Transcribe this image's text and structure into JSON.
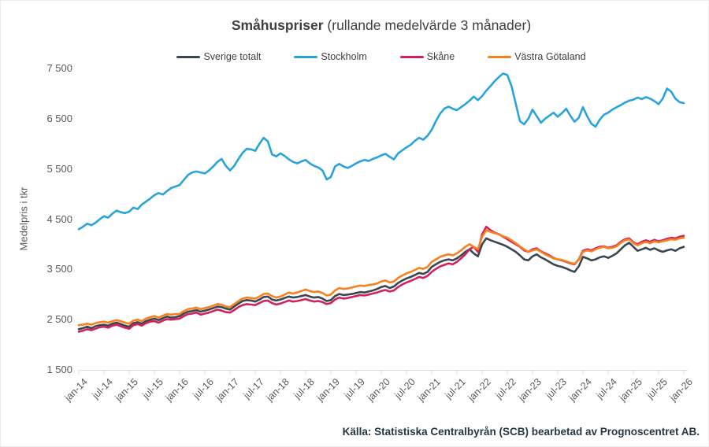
{
  "title": {
    "bold": "Småhuspriser",
    "rest": " (rullande medelvärde 3 månader)"
  },
  "source": "Källa: Statistiska Centralbyrån (SCB) bearbetad av Prognoscentret AB.",
  "y_axis": {
    "label": "Medelpris i tkr",
    "tick_labels": [
      "1 500",
      "2 500",
      "3 500",
      "4 500",
      "5 500",
      "6 500",
      "7 500"
    ],
    "tick_values": [
      1500,
      2500,
      3500,
      4500,
      5500,
      6500,
      7500
    ]
  },
  "x_axis": {
    "tick_labels": [
      "jan-14",
      "jul-14",
      "jan-15",
      "jul-15",
      "jan-16",
      "jul-16",
      "jan-17",
      "jul-17",
      "jan-18",
      "jul-18",
      "jan-19",
      "jul-19",
      "jan-20",
      "jul-20",
      "jan-21",
      "jul-21",
      "jan-22",
      "jul-22",
      "jan-23",
      "jul-23",
      "jan-24",
      "jul-24",
      "jan-25",
      "jul-25",
      "jan-26"
    ]
  },
  "chart_data": {
    "type": "line",
    "title": "Småhuspriser (rullande medelvärde 3 månader)",
    "ylabel": "Medelpris i tkr",
    "ylim": [
      1500,
      7500
    ],
    "x_start": "jan-14",
    "x_end": "jan-26",
    "x_step_months": 1,
    "legend_position": "top",
    "grid": false,
    "series": [
      {
        "name": "Sverige totalt",
        "color": "#3b4750",
        "values": [
          2310,
          2330,
          2360,
          2330,
          2370,
          2390,
          2400,
          2380,
          2420,
          2440,
          2410,
          2380,
          2360,
          2430,
          2450,
          2420,
          2470,
          2500,
          2520,
          2490,
          2530,
          2560,
          2540,
          2550,
          2570,
          2620,
          2660,
          2670,
          2690,
          2660,
          2680,
          2700,
          2730,
          2760,
          2750,
          2720,
          2700,
          2760,
          2820,
          2870,
          2890,
          2880,
          2860,
          2900,
          2950,
          2960,
          2900,
          2880,
          2900,
          2930,
          2960,
          2940,
          2950,
          2970,
          2990,
          2960,
          2940,
          2950,
          2920,
          2870,
          2890,
          2970,
          3010,
          2990,
          3000,
          3010,
          3030,
          3050,
          3040,
          3060,
          3080,
          3110,
          3150,
          3170,
          3130,
          3160,
          3230,
          3280,
          3320,
          3350,
          3390,
          3430,
          3410,
          3450,
          3550,
          3600,
          3650,
          3680,
          3700,
          3680,
          3720,
          3780,
          3850,
          3900,
          3820,
          3760,
          4000,
          4120,
          4080,
          4050,
          4020,
          3990,
          3950,
          3900,
          3850,
          3780,
          3700,
          3680,
          3760,
          3800,
          3740,
          3700,
          3650,
          3600,
          3570,
          3550,
          3520,
          3480,
          3450,
          3560,
          3750,
          3720,
          3680,
          3700,
          3740,
          3760,
          3730,
          3770,
          3820,
          3900,
          3980,
          4030,
          3950,
          3870,
          3900,
          3930,
          3890,
          3920,
          3880,
          3850,
          3880,
          3900,
          3870,
          3920,
          3950
        ]
      },
      {
        "name": "Stockholm",
        "color": "#29a3dc",
        "values": [
          4300,
          4350,
          4410,
          4380,
          4430,
          4500,
          4560,
          4530,
          4610,
          4670,
          4640,
          4620,
          4650,
          4730,
          4700,
          4790,
          4850,
          4910,
          4980,
          5020,
          4990,
          5060,
          5120,
          5150,
          5180,
          5280,
          5380,
          5430,
          5450,
          5430,
          5410,
          5470,
          5550,
          5640,
          5700,
          5560,
          5470,
          5560,
          5700,
          5820,
          5900,
          5890,
          5860,
          6000,
          6120,
          6050,
          5790,
          5750,
          5810,
          5760,
          5690,
          5640,
          5610,
          5650,
          5680,
          5610,
          5560,
          5530,
          5470,
          5290,
          5340,
          5550,
          5600,
          5550,
          5520,
          5560,
          5610,
          5650,
          5680,
          5660,
          5700,
          5730,
          5770,
          5800,
          5740,
          5690,
          5810,
          5870,
          5930,
          5980,
          6060,
          6120,
          6080,
          6160,
          6280,
          6450,
          6600,
          6700,
          6740,
          6700,
          6670,
          6730,
          6790,
          6860,
          6940,
          6870,
          6950,
          7060,
          7150,
          7250,
          7330,
          7400,
          7370,
          7150,
          6800,
          6450,
          6390,
          6500,
          6680,
          6550,
          6420,
          6500,
          6560,
          6620,
          6540,
          6610,
          6700,
          6560,
          6440,
          6520,
          6730,
          6550,
          6400,
          6340,
          6480,
          6580,
          6620,
          6680,
          6730,
          6770,
          6820,
          6860,
          6880,
          6920,
          6890,
          6930,
          6900,
          6850,
          6790,
          6900,
          7100,
          7040,
          6900,
          6830,
          6810
        ]
      },
      {
        "name": "Skåne",
        "color": "#d2215f",
        "values": [
          2260,
          2280,
          2310,
          2290,
          2320,
          2350,
          2360,
          2340,
          2380,
          2400,
          2370,
          2340,
          2320,
          2390,
          2410,
          2380,
          2430,
          2460,
          2470,
          2440,
          2480,
          2510,
          2500,
          2510,
          2520,
          2570,
          2610,
          2620,
          2640,
          2600,
          2620,
          2640,
          2670,
          2700,
          2680,
          2650,
          2640,
          2690,
          2750,
          2790,
          2810,
          2800,
          2790,
          2830,
          2870,
          2880,
          2830,
          2800,
          2820,
          2850,
          2880,
          2860,
          2870,
          2890,
          2910,
          2880,
          2860,
          2870,
          2850,
          2810,
          2830,
          2900,
          2940,
          2920,
          2930,
          2950,
          2970,
          2990,
          2980,
          3000,
          3020,
          3040,
          3070,
          3090,
          3060,
          3080,
          3150,
          3200,
          3240,
          3270,
          3310,
          3350,
          3330,
          3370,
          3450,
          3510,
          3560,
          3590,
          3620,
          3600,
          3650,
          3720,
          3800,
          3900,
          3950,
          3850,
          4200,
          4350,
          4280,
          4230,
          4200,
          4150,
          4100,
          4050,
          4000,
          3950,
          3880,
          3850,
          3900,
          3920,
          3860,
          3820,
          3780,
          3730,
          3700,
          3680,
          3650,
          3620,
          3600,
          3700,
          3870,
          3900,
          3880,
          3920,
          3950,
          3960,
          3930,
          3950,
          3980,
          4050,
          4100,
          4120,
          4040,
          4000,
          4050,
          4080,
          4050,
          4090,
          4060,
          4080,
          4110,
          4130,
          4120,
          4150,
          4170
        ]
      },
      {
        "name": "Västra Götaland",
        "color": "#f5821f",
        "values": [
          2390,
          2400,
          2420,
          2400,
          2430,
          2450,
          2460,
          2440,
          2470,
          2490,
          2470,
          2440,
          2420,
          2480,
          2500,
          2470,
          2520,
          2550,
          2570,
          2540,
          2580,
          2610,
          2600,
          2610,
          2610,
          2670,
          2710,
          2720,
          2740,
          2710,
          2730,
          2750,
          2780,
          2810,
          2800,
          2760,
          2750,
          2810,
          2870,
          2920,
          2940,
          2930,
          2920,
          2960,
          3010,
          3020,
          2970,
          2940,
          2960,
          3000,
          3040,
          3020,
          3040,
          3070,
          3100,
          3070,
          3050,
          3060,
          3030,
          2980,
          3000,
          3080,
          3130,
          3110,
          3120,
          3140,
          3160,
          3180,
          3170,
          3190,
          3200,
          3220,
          3260,
          3280,
          3240,
          3260,
          3330,
          3380,
          3420,
          3450,
          3490,
          3530,
          3510,
          3550,
          3650,
          3700,
          3750,
          3780,
          3800,
          3780,
          3820,
          3880,
          3950,
          4000,
          3950,
          3900,
          4150,
          4280,
          4250,
          4220,
          4200,
          4160,
          4130,
          4080,
          4020,
          3960,
          3900,
          3850,
          3880,
          3900,
          3850,
          3800,
          3760,
          3720,
          3700,
          3690,
          3660,
          3630,
          3610,
          3690,
          3850,
          3880,
          3860,
          3900,
          3930,
          3950,
          3920,
          3930,
          3960,
          4030,
          4080,
          4100,
          4020,
          3980,
          4020,
          4050,
          4020,
          4060,
          4040,
          4060,
          4080,
          4100,
          4090,
          4120,
          4130
        ]
      }
    ],
    "axis_color": "#d9d9d9"
  }
}
